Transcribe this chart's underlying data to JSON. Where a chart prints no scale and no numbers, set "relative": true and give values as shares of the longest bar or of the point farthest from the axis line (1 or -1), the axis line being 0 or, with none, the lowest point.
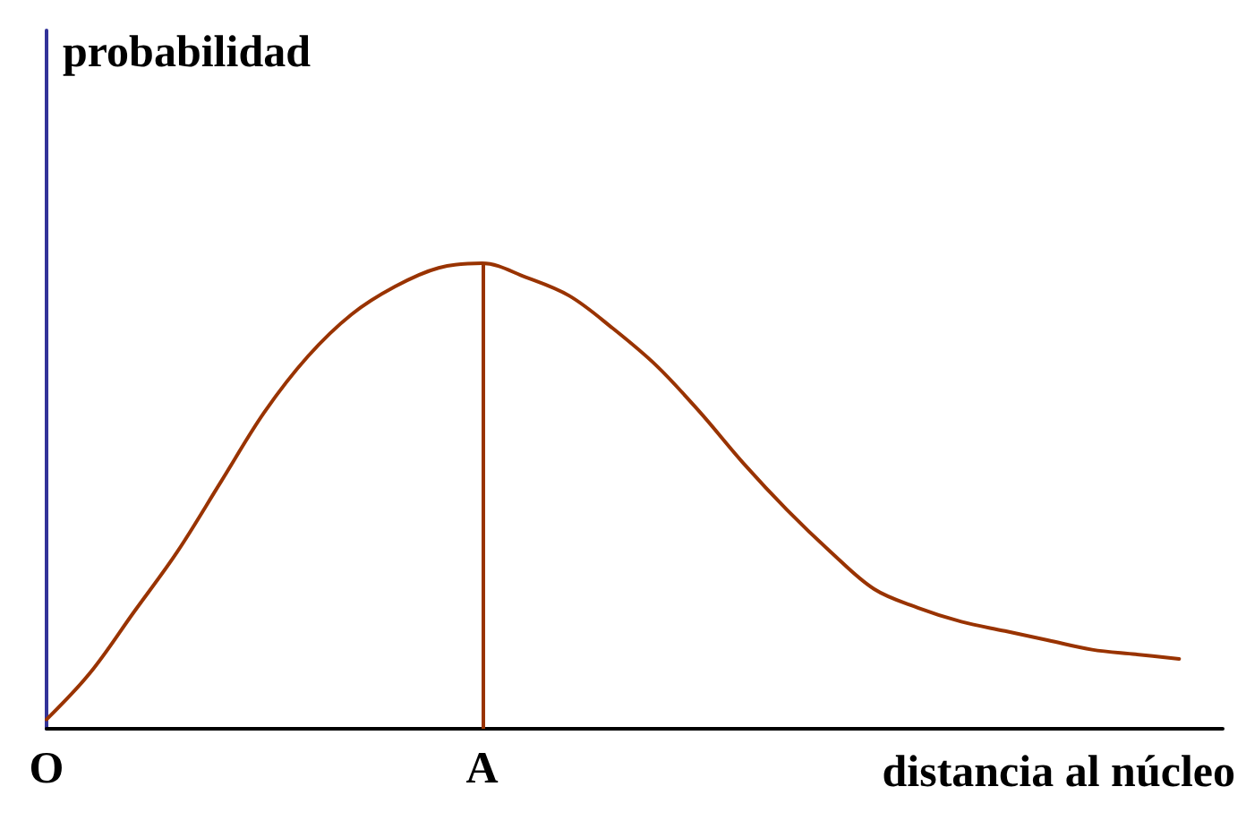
{
  "chart_data": {
    "type": "line",
    "relative": true,
    "xlabel": "distancia al núcleo",
    "ylabel": "probabilidad",
    "categories": [
      "O",
      null,
      null,
      null,
      null,
      null,
      null,
      null,
      null,
      null,
      "A",
      null,
      null,
      null,
      null,
      null,
      null,
      null,
      null,
      null,
      null,
      null,
      null,
      null,
      null,
      null,
      null,
      null
    ],
    "values": [
      0.02,
      0.12,
      0.25,
      0.38,
      0.53,
      0.68,
      0.8,
      0.89,
      0.95,
      0.99,
      1,
      0.97,
      0.93,
      0.86,
      0.78,
      0.68,
      0.57,
      0.47,
      0.38,
      0.3,
      0.26,
      0.23,
      0.21,
      0.19,
      0.17,
      0.16,
      0.15,
      null
    ],
    "color": "#993300",
    "ref_lines": [
      {
        "axis": "x",
        "value": "A",
        "color": "#993300"
      }
    ],
    "marker": "none"
  }
}
